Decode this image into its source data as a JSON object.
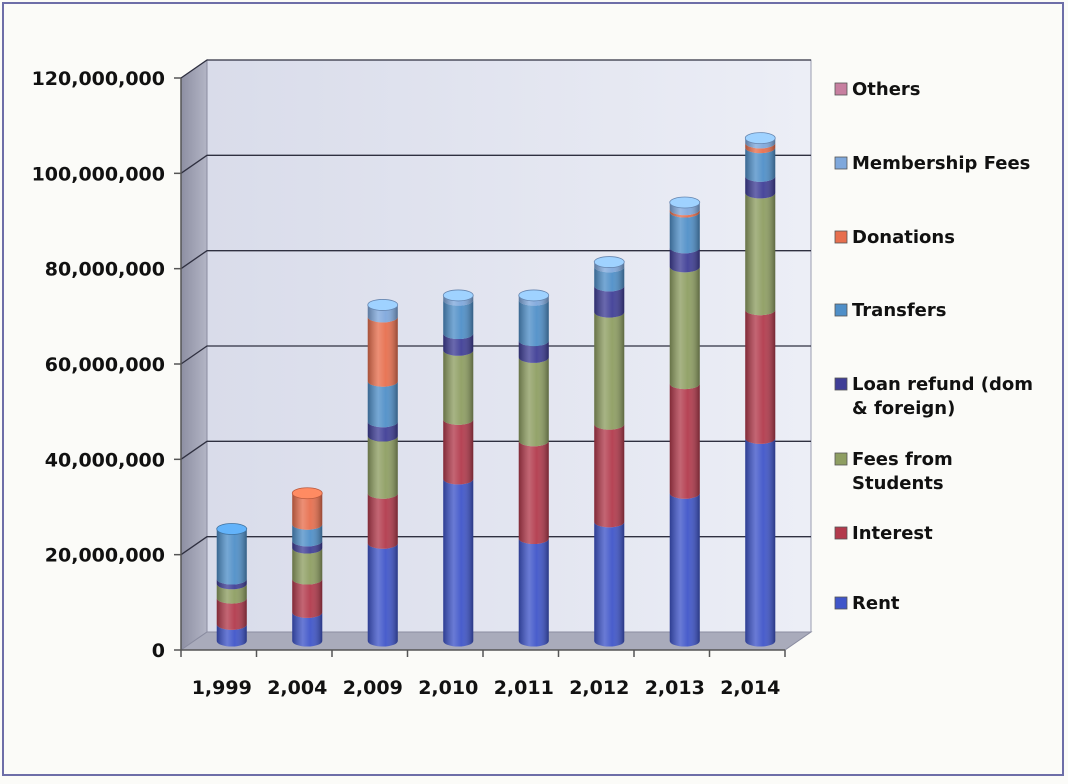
{
  "chart_data": {
    "type": "bar",
    "stacked": true,
    "categories": [
      "1,999",
      "2,004",
      "2,009",
      "2,010",
      "2,011",
      "2,012",
      "2,013",
      "2,014"
    ],
    "ylim": [
      0,
      120000000
    ],
    "yticks": [
      0,
      20000000,
      40000000,
      60000000,
      80000000,
      100000000,
      120000000
    ],
    "ytick_labels": [
      "0",
      "20,000,000",
      "40,000,000",
      "60,000,000",
      "80,000,000",
      "100,000,000",
      "120,000,000"
    ],
    "grid": true,
    "legend_position": "right",
    "series": [
      {
        "name": "Rent",
        "color": "#3F55C9",
        "values": [
          3500000,
          6000000,
          20500000,
          34000000,
          21500000,
          25000000,
          31000000,
          42500000
        ]
      },
      {
        "name": "Interest",
        "color": "#B23A4C",
        "values": [
          5500000,
          7000000,
          10500000,
          12500000,
          20500000,
          20500000,
          23000000,
          27000000
        ]
      },
      {
        "name": "Fees from Students",
        "color": "#8E9E62",
        "values": [
          3000000,
          6500000,
          12000000,
          14500000,
          17500000,
          23500000,
          24500000,
          24500000
        ]
      },
      {
        "name": "Loan refund (dom & foreign)",
        "color": "#3F3E96",
        "values": [
          1000000,
          1500000,
          3000000,
          3500000,
          3500000,
          5500000,
          4000000,
          3500000
        ]
      },
      {
        "name": "Transfers",
        "color": "#4F8FC8",
        "values": [
          10500000,
          3500000,
          8500000,
          7000000,
          8500000,
          4000000,
          7500000,
          6000000
        ]
      },
      {
        "name": "Donations",
        "color": "#E76F4E",
        "values": [
          0,
          6500000,
          13500000,
          0,
          0,
          0,
          500000,
          1000000
        ]
      },
      {
        "name": "Membership Fees",
        "color": "#7FA8DC",
        "values": [
          0,
          0,
          2500000,
          1000000,
          1000000,
          1000000,
          1500000,
          1000000
        ]
      },
      {
        "name": "Others",
        "color": "#C77FA0",
        "values": [
          0,
          0,
          0,
          0,
          0,
          0,
          0,
          0
        ]
      }
    ],
    "legend_order": [
      "Others",
      "Membership Fees",
      "Donations",
      "Transfers",
      "Loan refund (dom & foreign)",
      "Fees from Students",
      "Interest",
      "Rent"
    ]
  }
}
